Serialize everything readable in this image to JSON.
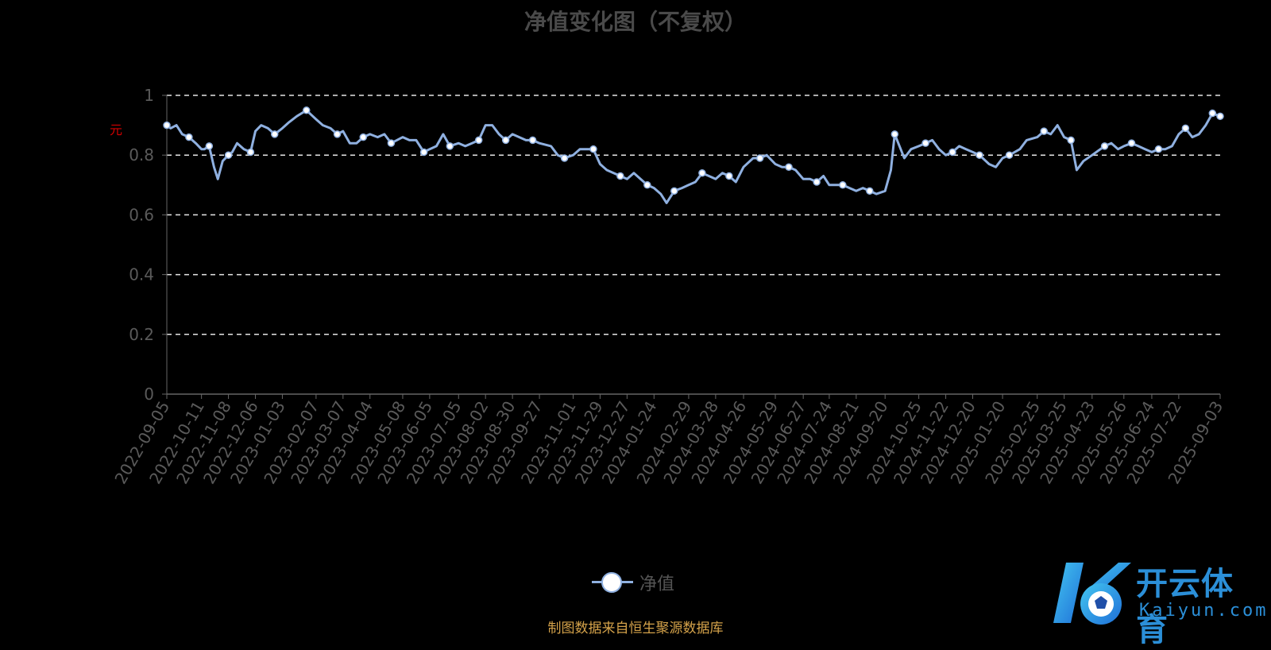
{
  "chart_data": {
    "type": "line",
    "title": "净值变化图（不复权）",
    "ylabel": "元",
    "xlabel": "",
    "ylim": [
      0,
      1
    ],
    "yticks": [
      "0",
      "0.2",
      "0.4",
      "0.6",
      "0.8",
      "1"
    ],
    "ytick_values": [
      0,
      0.2,
      0.4,
      0.6,
      0.8,
      1
    ],
    "grid": true,
    "x_range": [
      "2022-09-05",
      "2025-09-03"
    ],
    "x_tick_labels": [
      "2022-09-05",
      "2022-10-11",
      "2022-11-08",
      "2022-12-06",
      "2023-01-03",
      "2023-02-07",
      "2023-03-07",
      "2023-04-04",
      "2023-05-08",
      "2023-06-05",
      "2023-07-05",
      "2023-08-02",
      "2023-08-30",
      "2023-09-27",
      "2023-11-01",
      "2023-11-29",
      "2023-12-27",
      "2024-01-24",
      "2024-02-29",
      "2024-03-28",
      "2024-04-26",
      "2024-05-29",
      "2024-06-27",
      "2024-07-24",
      "2024-08-21",
      "2024-09-20",
      "2024-10-25",
      "2024-11-22",
      "2024-12-20",
      "2025-01-20",
      "2025-02-25",
      "2025-03-25",
      "2025-04-23",
      "2025-05-26",
      "2025-06-24",
      "2025-07-22",
      "2025-09-03"
    ],
    "series": [
      {
        "name": "净值",
        "color": "#8fb0e0",
        "marker_color": "#ffffff",
        "points": [
          [
            "2022-09-05",
            0.9
          ],
          [
            "2022-09-09",
            0.89
          ],
          [
            "2022-09-15",
            0.9
          ],
          [
            "2022-09-21",
            0.87
          ],
          [
            "2022-09-28",
            0.86
          ],
          [
            "2022-10-05",
            0.84
          ],
          [
            "2022-10-11",
            0.82
          ],
          [
            "2022-10-14",
            0.82
          ],
          [
            "2022-10-19",
            0.83
          ],
          [
            "2022-10-24",
            0.76
          ],
          [
            "2022-10-28",
            0.72
          ],
          [
            "2022-11-02",
            0.78
          ],
          [
            "2022-11-08",
            0.8
          ],
          [
            "2022-11-12",
            0.81
          ],
          [
            "2022-11-17",
            0.84
          ],
          [
            "2022-11-24",
            0.82
          ],
          [
            "2022-12-01",
            0.81
          ],
          [
            "2022-12-06",
            0.88
          ],
          [
            "2022-12-12",
            0.9
          ],
          [
            "2022-12-19",
            0.89
          ],
          [
            "2022-12-26",
            0.87
          ],
          [
            "2023-01-03",
            0.89
          ],
          [
            "2023-01-10",
            0.91
          ],
          [
            "2023-01-18",
            0.93
          ],
          [
            "2023-01-28",
            0.95
          ],
          [
            "2023-02-07",
            0.92
          ],
          [
            "2023-02-14",
            0.9
          ],
          [
            "2023-02-22",
            0.89
          ],
          [
            "2023-03-01",
            0.87
          ],
          [
            "2023-03-07",
            0.88
          ],
          [
            "2023-03-14",
            0.84
          ],
          [
            "2023-03-21",
            0.84
          ],
          [
            "2023-03-28",
            0.86
          ],
          [
            "2023-04-04",
            0.87
          ],
          [
            "2023-04-12",
            0.86
          ],
          [
            "2023-04-19",
            0.87
          ],
          [
            "2023-04-26",
            0.84
          ],
          [
            "2023-05-08",
            0.86
          ],
          [
            "2023-05-15",
            0.85
          ],
          [
            "2023-05-22",
            0.85
          ],
          [
            "2023-05-30",
            0.81
          ],
          [
            "2023-06-05",
            0.82
          ],
          [
            "2023-06-12",
            0.83
          ],
          [
            "2023-06-19",
            0.87
          ],
          [
            "2023-06-26",
            0.83
          ],
          [
            "2023-07-05",
            0.84
          ],
          [
            "2023-07-12",
            0.83
          ],
          [
            "2023-07-19",
            0.84
          ],
          [
            "2023-07-26",
            0.85
          ],
          [
            "2023-08-02",
            0.9
          ],
          [
            "2023-08-09",
            0.9
          ],
          [
            "2023-08-16",
            0.87
          ],
          [
            "2023-08-23",
            0.85
          ],
          [
            "2023-08-30",
            0.87
          ],
          [
            "2023-09-06",
            0.86
          ],
          [
            "2023-09-13",
            0.85
          ],
          [
            "2023-09-20",
            0.85
          ],
          [
            "2023-09-27",
            0.84
          ],
          [
            "2023-10-09",
            0.83
          ],
          [
            "2023-10-16",
            0.8
          ],
          [
            "2023-10-23",
            0.79
          ],
          [
            "2023-11-01",
            0.8
          ],
          [
            "2023-11-08",
            0.82
          ],
          [
            "2023-11-15",
            0.82
          ],
          [
            "2023-11-22",
            0.82
          ],
          [
            "2023-11-29",
            0.77
          ],
          [
            "2023-12-06",
            0.75
          ],
          [
            "2023-12-13",
            0.74
          ],
          [
            "2023-12-20",
            0.73
          ],
          [
            "2023-12-27",
            0.72
          ],
          [
            "2024-01-03",
            0.74
          ],
          [
            "2024-01-10",
            0.72
          ],
          [
            "2024-01-17",
            0.7
          ],
          [
            "2024-01-24",
            0.69
          ],
          [
            "2024-01-31",
            0.67
          ],
          [
            "2024-02-06",
            0.64
          ],
          [
            "2024-02-14",
            0.68
          ],
          [
            "2024-02-22",
            0.69
          ],
          [
            "2024-02-29",
            0.7
          ],
          [
            "2024-03-07",
            0.71
          ],
          [
            "2024-03-14",
            0.74
          ],
          [
            "2024-03-21",
            0.73
          ],
          [
            "2024-03-28",
            0.72
          ],
          [
            "2024-04-04",
            0.74
          ],
          [
            "2024-04-11",
            0.73
          ],
          [
            "2024-04-18",
            0.71
          ],
          [
            "2024-04-26",
            0.76
          ],
          [
            "2024-05-06",
            0.79
          ],
          [
            "2024-05-13",
            0.79
          ],
          [
            "2024-05-20",
            0.8
          ],
          [
            "2024-05-29",
            0.77
          ],
          [
            "2024-06-05",
            0.76
          ],
          [
            "2024-06-12",
            0.76
          ],
          [
            "2024-06-19",
            0.75
          ],
          [
            "2024-06-27",
            0.72
          ],
          [
            "2024-07-04",
            0.72
          ],
          [
            "2024-07-11",
            0.71
          ],
          [
            "2024-07-18",
            0.73
          ],
          [
            "2024-07-24",
            0.7
          ],
          [
            "2024-07-31",
            0.7
          ],
          [
            "2024-08-07",
            0.7
          ],
          [
            "2024-08-14",
            0.69
          ],
          [
            "2024-08-21",
            0.68
          ],
          [
            "2024-08-28",
            0.69
          ],
          [
            "2024-09-04",
            0.68
          ],
          [
            "2024-09-11",
            0.67
          ],
          [
            "2024-09-20",
            0.68
          ],
          [
            "2024-09-26",
            0.75
          ],
          [
            "2024-09-30",
            0.87
          ],
          [
            "2024-10-10",
            0.79
          ],
          [
            "2024-10-17",
            0.82
          ],
          [
            "2024-10-25",
            0.83
          ],
          [
            "2024-11-01",
            0.84
          ],
          [
            "2024-11-08",
            0.85
          ],
          [
            "2024-11-15",
            0.82
          ],
          [
            "2024-11-22",
            0.8
          ],
          [
            "2024-11-29",
            0.81
          ],
          [
            "2024-12-06",
            0.83
          ],
          [
            "2024-12-13",
            0.82
          ],
          [
            "2024-12-20",
            0.81
          ],
          [
            "2024-12-27",
            0.8
          ],
          [
            "2025-01-06",
            0.77
          ],
          [
            "2025-01-13",
            0.76
          ],
          [
            "2025-01-20",
            0.79
          ],
          [
            "2025-01-27",
            0.8
          ],
          [
            "2025-02-07",
            0.82
          ],
          [
            "2025-02-14",
            0.85
          ],
          [
            "2025-02-25",
            0.86
          ],
          [
            "2025-03-04",
            0.88
          ],
          [
            "2025-03-11",
            0.87
          ],
          [
            "2025-03-18",
            0.9
          ],
          [
            "2025-03-25",
            0.86
          ],
          [
            "2025-04-01",
            0.85
          ],
          [
            "2025-04-07",
            0.75
          ],
          [
            "2025-04-14",
            0.78
          ],
          [
            "2025-04-23",
            0.8
          ],
          [
            "2025-05-06",
            0.83
          ],
          [
            "2025-05-13",
            0.84
          ],
          [
            "2025-05-20",
            0.82
          ],
          [
            "2025-05-26",
            0.83
          ],
          [
            "2025-06-03",
            0.84
          ],
          [
            "2025-06-10",
            0.83
          ],
          [
            "2025-06-17",
            0.82
          ],
          [
            "2025-06-24",
            0.81
          ],
          [
            "2025-07-01",
            0.82
          ],
          [
            "2025-07-08",
            0.82
          ],
          [
            "2025-07-15",
            0.83
          ],
          [
            "2025-07-22",
            0.87
          ],
          [
            "2025-07-29",
            0.89
          ],
          [
            "2025-08-05",
            0.86
          ],
          [
            "2025-08-12",
            0.87
          ],
          [
            "2025-08-19",
            0.9
          ],
          [
            "2025-08-26",
            0.94
          ],
          [
            "2025-09-03",
            0.93
          ]
        ]
      }
    ],
    "legend": [
      "净值"
    ],
    "legend_position": "bottom-center"
  },
  "source_note": "制图数据来自恒生聚源数据库",
  "logo": {
    "cn": "开云体育",
    "en": "Kaiyun.com"
  }
}
